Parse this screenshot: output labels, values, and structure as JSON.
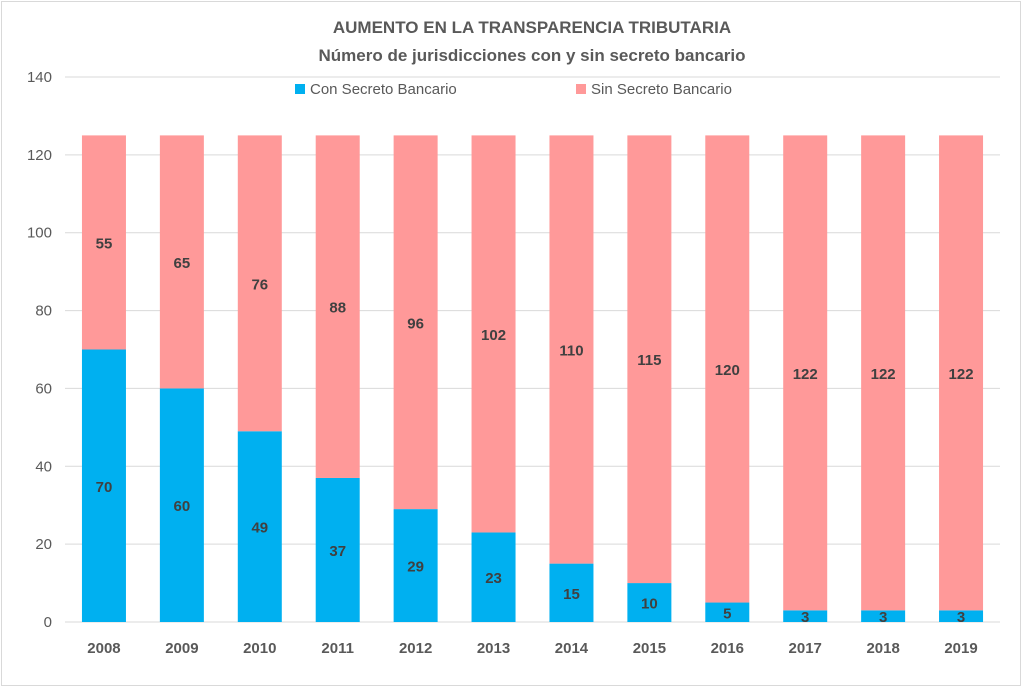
{
  "chart_data": {
    "type": "bar",
    "stacked": true,
    "title": "AUMENTO EN LA TRANSPARENCIA TRIBUTARIA",
    "subtitle": "Número de jurisdicciones con y sin secreto bancario",
    "xlabel": "",
    "ylabel": "",
    "ylim": [
      0,
      140
    ],
    "yticks": [
      0,
      20,
      40,
      60,
      80,
      100,
      120,
      140
    ],
    "grid": true,
    "legend_position": "top",
    "categories": [
      "2008",
      "2009",
      "2010",
      "2011",
      "2012",
      "2013",
      "2014",
      "2015",
      "2016",
      "2017",
      "2018",
      "2019"
    ],
    "series": [
      {
        "name": "Con Secreto Bancario",
        "color": "#00B0F0",
        "values": [
          70,
          60,
          49,
          37,
          29,
          23,
          15,
          10,
          5,
          3,
          3,
          3
        ]
      },
      {
        "name": "Sin Secreto Bancario",
        "color": "#FF9999",
        "values": [
          55,
          65,
          76,
          88,
          96,
          102,
          110,
          115,
          120,
          122,
          122,
          122
        ]
      }
    ]
  }
}
